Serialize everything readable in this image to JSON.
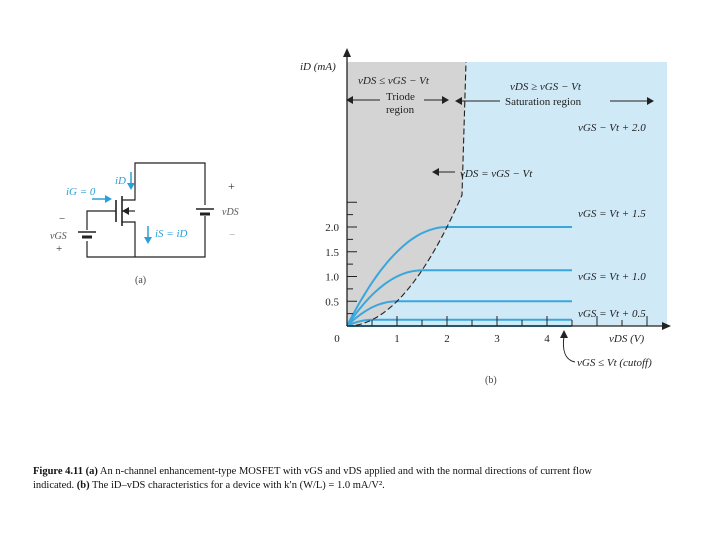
{
  "colors": {
    "saturation_fill": "#cfe9f7",
    "triode_fill": "#d4d4d4",
    "curve": "#3aa7dc",
    "circuit_blue": "#2a9fd8",
    "ink": "#222222"
  },
  "panel_a": {
    "label": "(a)",
    "iG": "iG = 0",
    "iD": "iD",
    "iS": "iS = iD",
    "vDS": "vDS",
    "vGS": "vGS",
    "plus1": "+",
    "minus1": "−",
    "plus2": "+",
    "minus2": "−"
  },
  "panel_b": {
    "label": "(b)",
    "ylabel": "iD (mA)",
    "xlabel": "vDS (V)",
    "triode_label": "vDS ≤ vGS − Vt",
    "triode_word1": "Triode",
    "triode_word2": "region",
    "sat_label": "vDS ≥ vGS − Vt",
    "sat_word": "Saturation region",
    "boundary_label": "vDS = vGS − Vt",
    "cutoff_label": "vGS ≤ Vt (cutoff)",
    "curve_labels": [
      "vGS − Vt + 2.0",
      "vGS = Vt + 1.5",
      "vGS = Vt + 1.0",
      "vGS = Vt + 0.5"
    ]
  },
  "chart_data": {
    "type": "line",
    "title": "",
    "xlabel": "vDS (V)",
    "ylabel": "iD (mA)",
    "xlim": [
      0,
      5
    ],
    "ylim": [
      0,
      2.5
    ],
    "xticks": [
      "0",
      "1",
      "2",
      "3",
      "4"
    ],
    "yticks": [
      "0.5",
      "1.0",
      "1.5",
      "2.0"
    ],
    "series": [
      {
        "name": "vGS − Vt + 2.0",
        "vov": 2.0,
        "saturation_current": 2.0
      },
      {
        "name": "vGS = Vt + 1.5",
        "vov": 1.5,
        "saturation_current": 1.125
      },
      {
        "name": "vGS = Vt + 1.0",
        "vov": 1.0,
        "saturation_current": 0.5
      },
      {
        "name": "vGS = Vt + 0.5",
        "vov": 0.5,
        "saturation_current": 0.125
      }
    ]
  },
  "caption": {
    "figure": "Figure 4.11",
    "part_a": "(a)",
    "text_a": " An n-channel enhancement-type MOSFET with vGS and vDS applied and with the normal directions of current flow indicated. ",
    "part_b": "(b)",
    "text_b": " The iD–vDS characteristics for a device with k′n (W/L) = 1.0 mA/V²."
  }
}
